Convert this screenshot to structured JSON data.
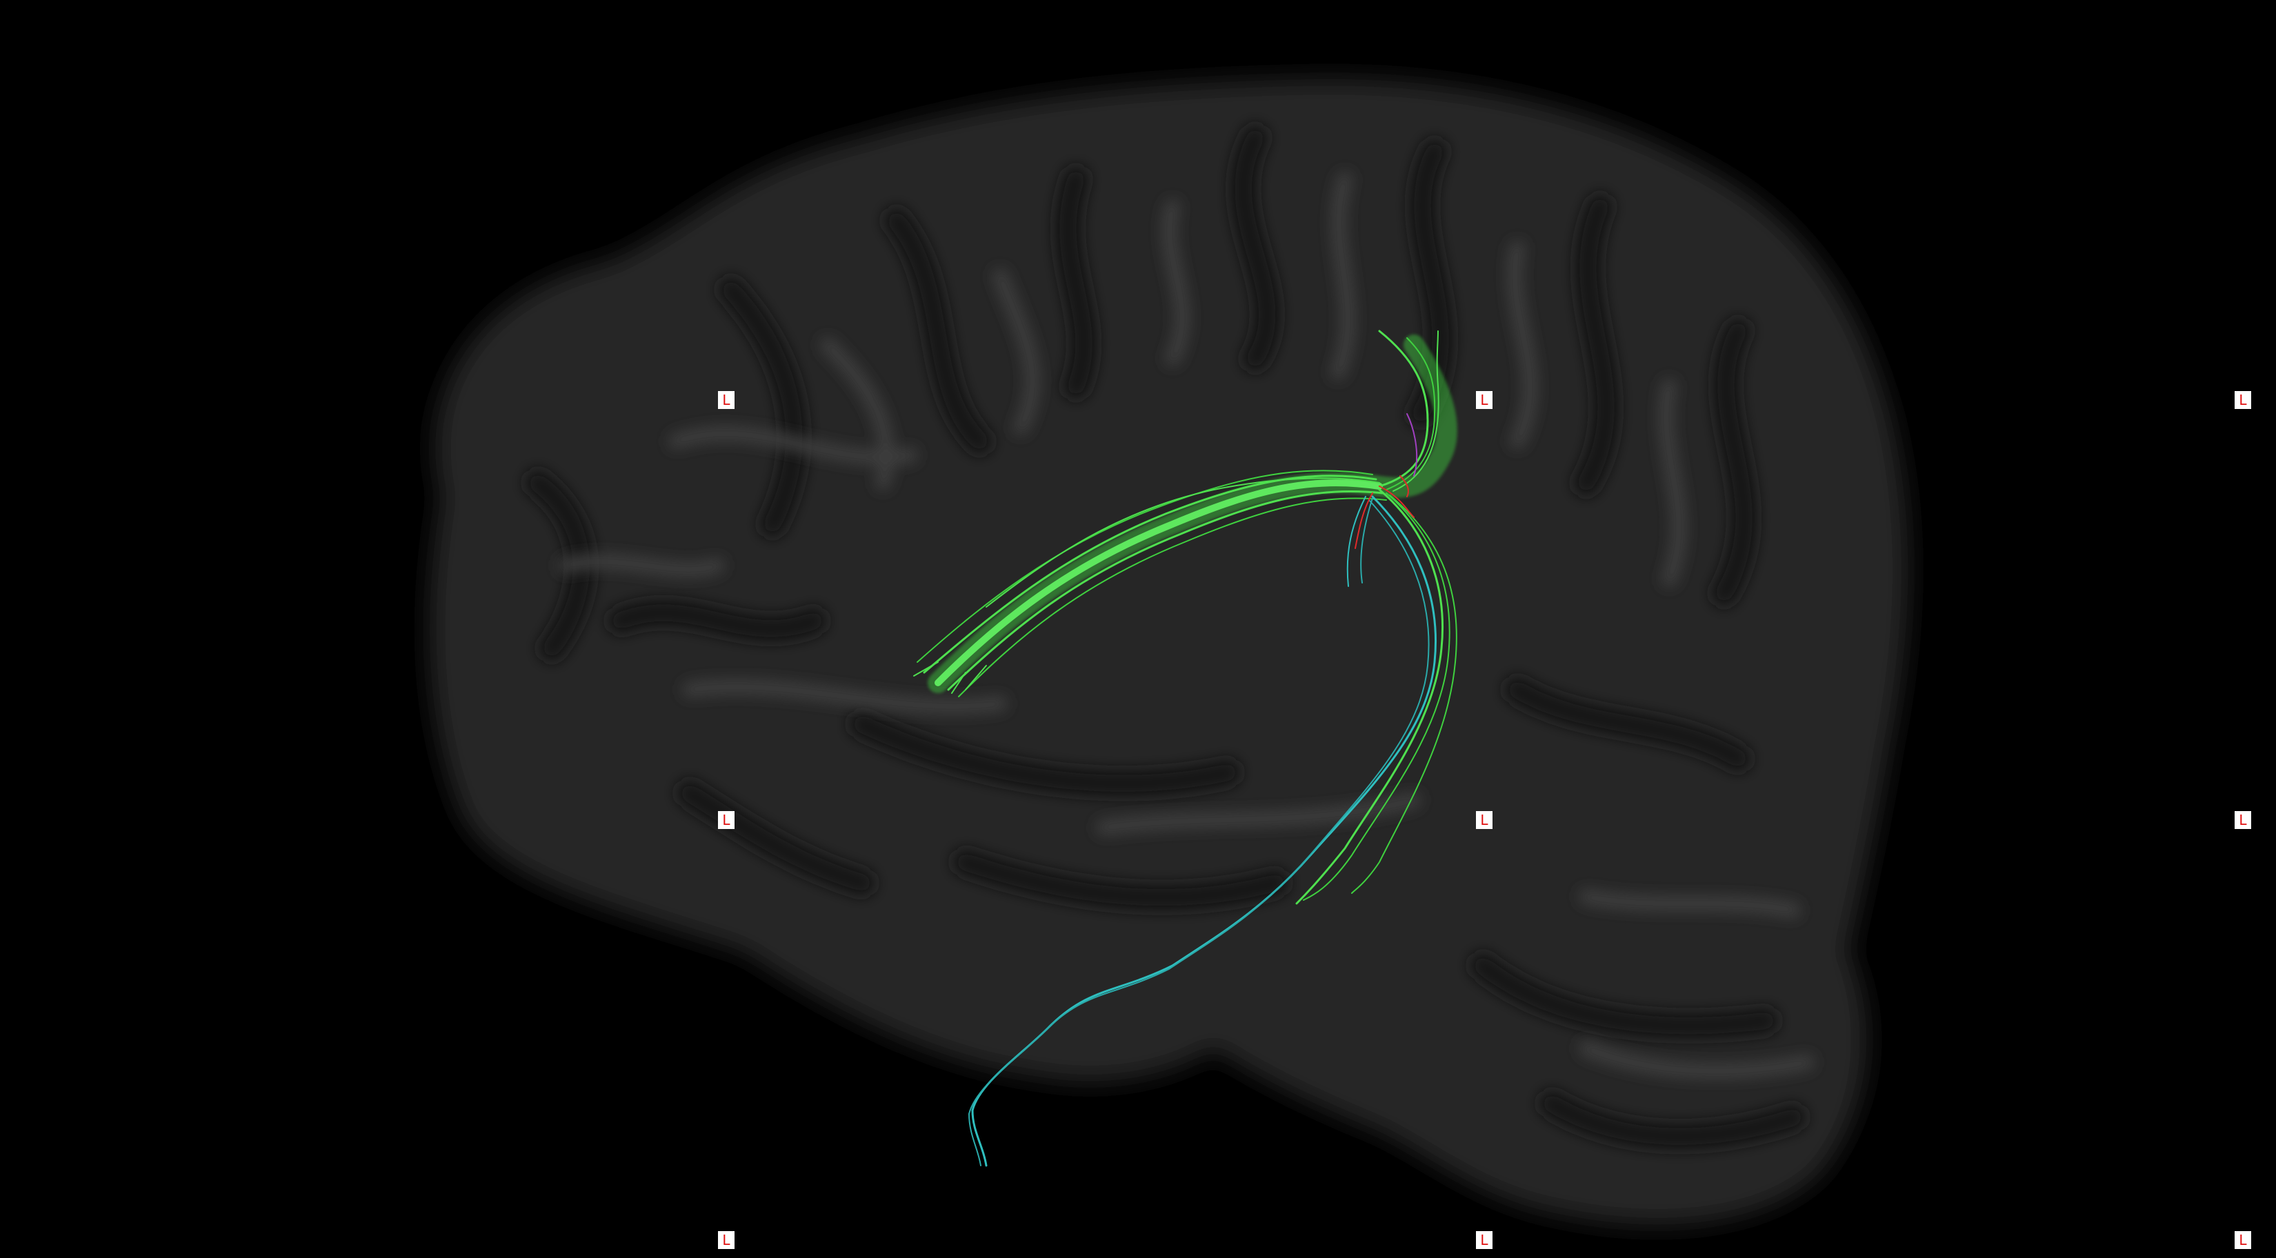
{
  "view": {
    "background_color": "#000000",
    "brain_color": "#2c2c2c",
    "sulci_color": "#161616",
    "gyri_highlight_color": "#3a3a3a"
  },
  "markers": {
    "label": "L",
    "text_color": "#e01010",
    "box_color": "#ffffff",
    "grid": [
      {
        "row": "top",
        "col": "left",
        "label": "L"
      },
      {
        "row": "top",
        "col": "center",
        "label": "L"
      },
      {
        "row": "top",
        "col": "right",
        "label": "L"
      },
      {
        "row": "middle",
        "col": "left",
        "label": "L"
      },
      {
        "row": "middle",
        "col": "center",
        "label": "L"
      },
      {
        "row": "middle",
        "col": "right",
        "label": "L"
      },
      {
        "row": "bottom",
        "col": "left",
        "label": "L"
      },
      {
        "row": "bottom",
        "col": "center",
        "label": "L"
      },
      {
        "row": "bottom",
        "col": "right",
        "label": "L"
      }
    ]
  },
  "tracts": {
    "primary_color": "#4fe04f",
    "secondary_color": "#2fbfbf",
    "accent_colors": [
      "#e02a2a",
      "#a040c0",
      "#3060ff"
    ]
  }
}
